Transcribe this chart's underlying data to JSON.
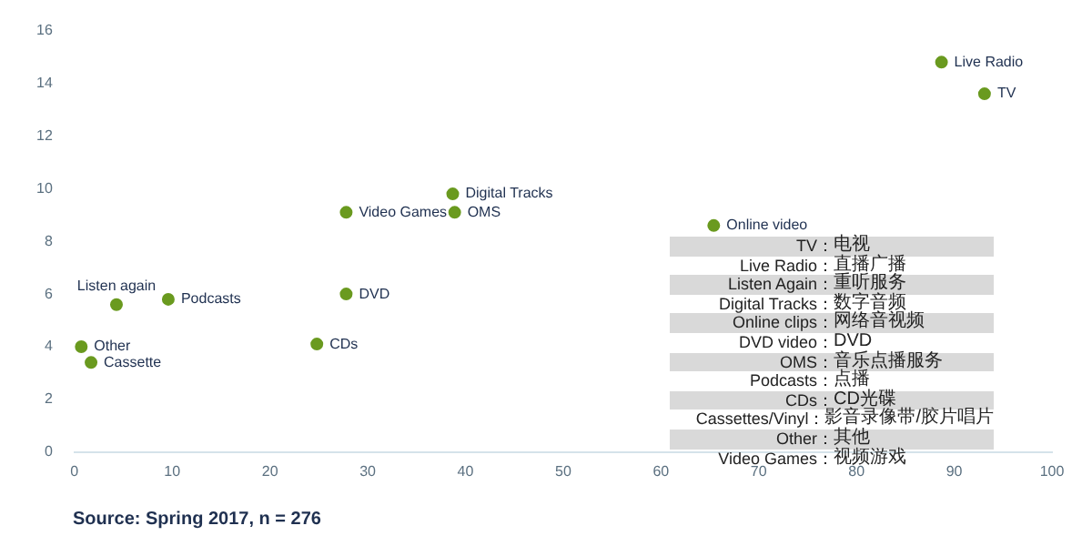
{
  "chart_data": {
    "type": "scatter",
    "x": [
      88.7,
      93.1,
      65.4,
      38.7,
      38.9,
      27.8,
      27.8,
      24.8,
      9.6,
      4.3,
      0.7,
      1.7
    ],
    "series": [
      {
        "color": "#6a9a1f",
        "values": [
          14.8,
          13.6,
          8.6,
          9.8,
          9.1,
          9.1,
          6.0,
          4.1,
          5.8,
          5.6,
          4.0,
          3.4
        ]
      }
    ],
    "xlim": [
      0,
      100
    ],
    "xticks": [
      0,
      10,
      20,
      30,
      40,
      50,
      60,
      70,
      80,
      90,
      100
    ],
    "ylim": [
      0,
      16
    ],
    "yticks": [
      0,
      2,
      4,
      6,
      8,
      10,
      12,
      14,
      16
    ],
    "grid": false,
    "legend": false,
    "marker": "circle",
    "annotations": [
      {
        "text": "Live Radio",
        "x": 88.7,
        "y": 14.8
      },
      {
        "text": "TV",
        "x": 93.1,
        "y": 13.6
      },
      {
        "text": "Online video",
        "x": 65.4,
        "y": 8.6
      },
      {
        "text": "Digital Tracks",
        "x": 38.7,
        "y": 9.8
      },
      {
        "text": "OMS",
        "x": 38.9,
        "y": 9.1
      },
      {
        "text": "Video Games",
        "x": 27.8,
        "y": 9.1
      },
      {
        "text": "DVD",
        "x": 27.8,
        "y": 6.0
      },
      {
        "text": "CDs",
        "x": 24.8,
        "y": 4.1
      },
      {
        "text": "Listen again",
        "x": 4.3,
        "y": 5.6
      },
      {
        "text": "Podcasts",
        "x": 9.6,
        "y": 5.8
      },
      {
        "text": "Other",
        "x": 0.7,
        "y": 4.0
      },
      {
        "text": "Cassette",
        "x": 1.7,
        "y": 3.4
      },
      "TV：电视",
      "Live Radio：直播广播",
      "Listen Again：重听服务",
      "Digital Tracks：数字音频",
      "Online clips：网络音视频",
      "DVD video：DVD",
      "OMS：音乐点播服务",
      "Podcasts：点播",
      "CDs：CD光碟",
      "Cassettes/Vinyl：影音录像带/胶片唱片",
      "Other：其他",
      "Video Games：视频游戏",
      "Source: Spring 2017, n = 276"
    ]
  }
}
